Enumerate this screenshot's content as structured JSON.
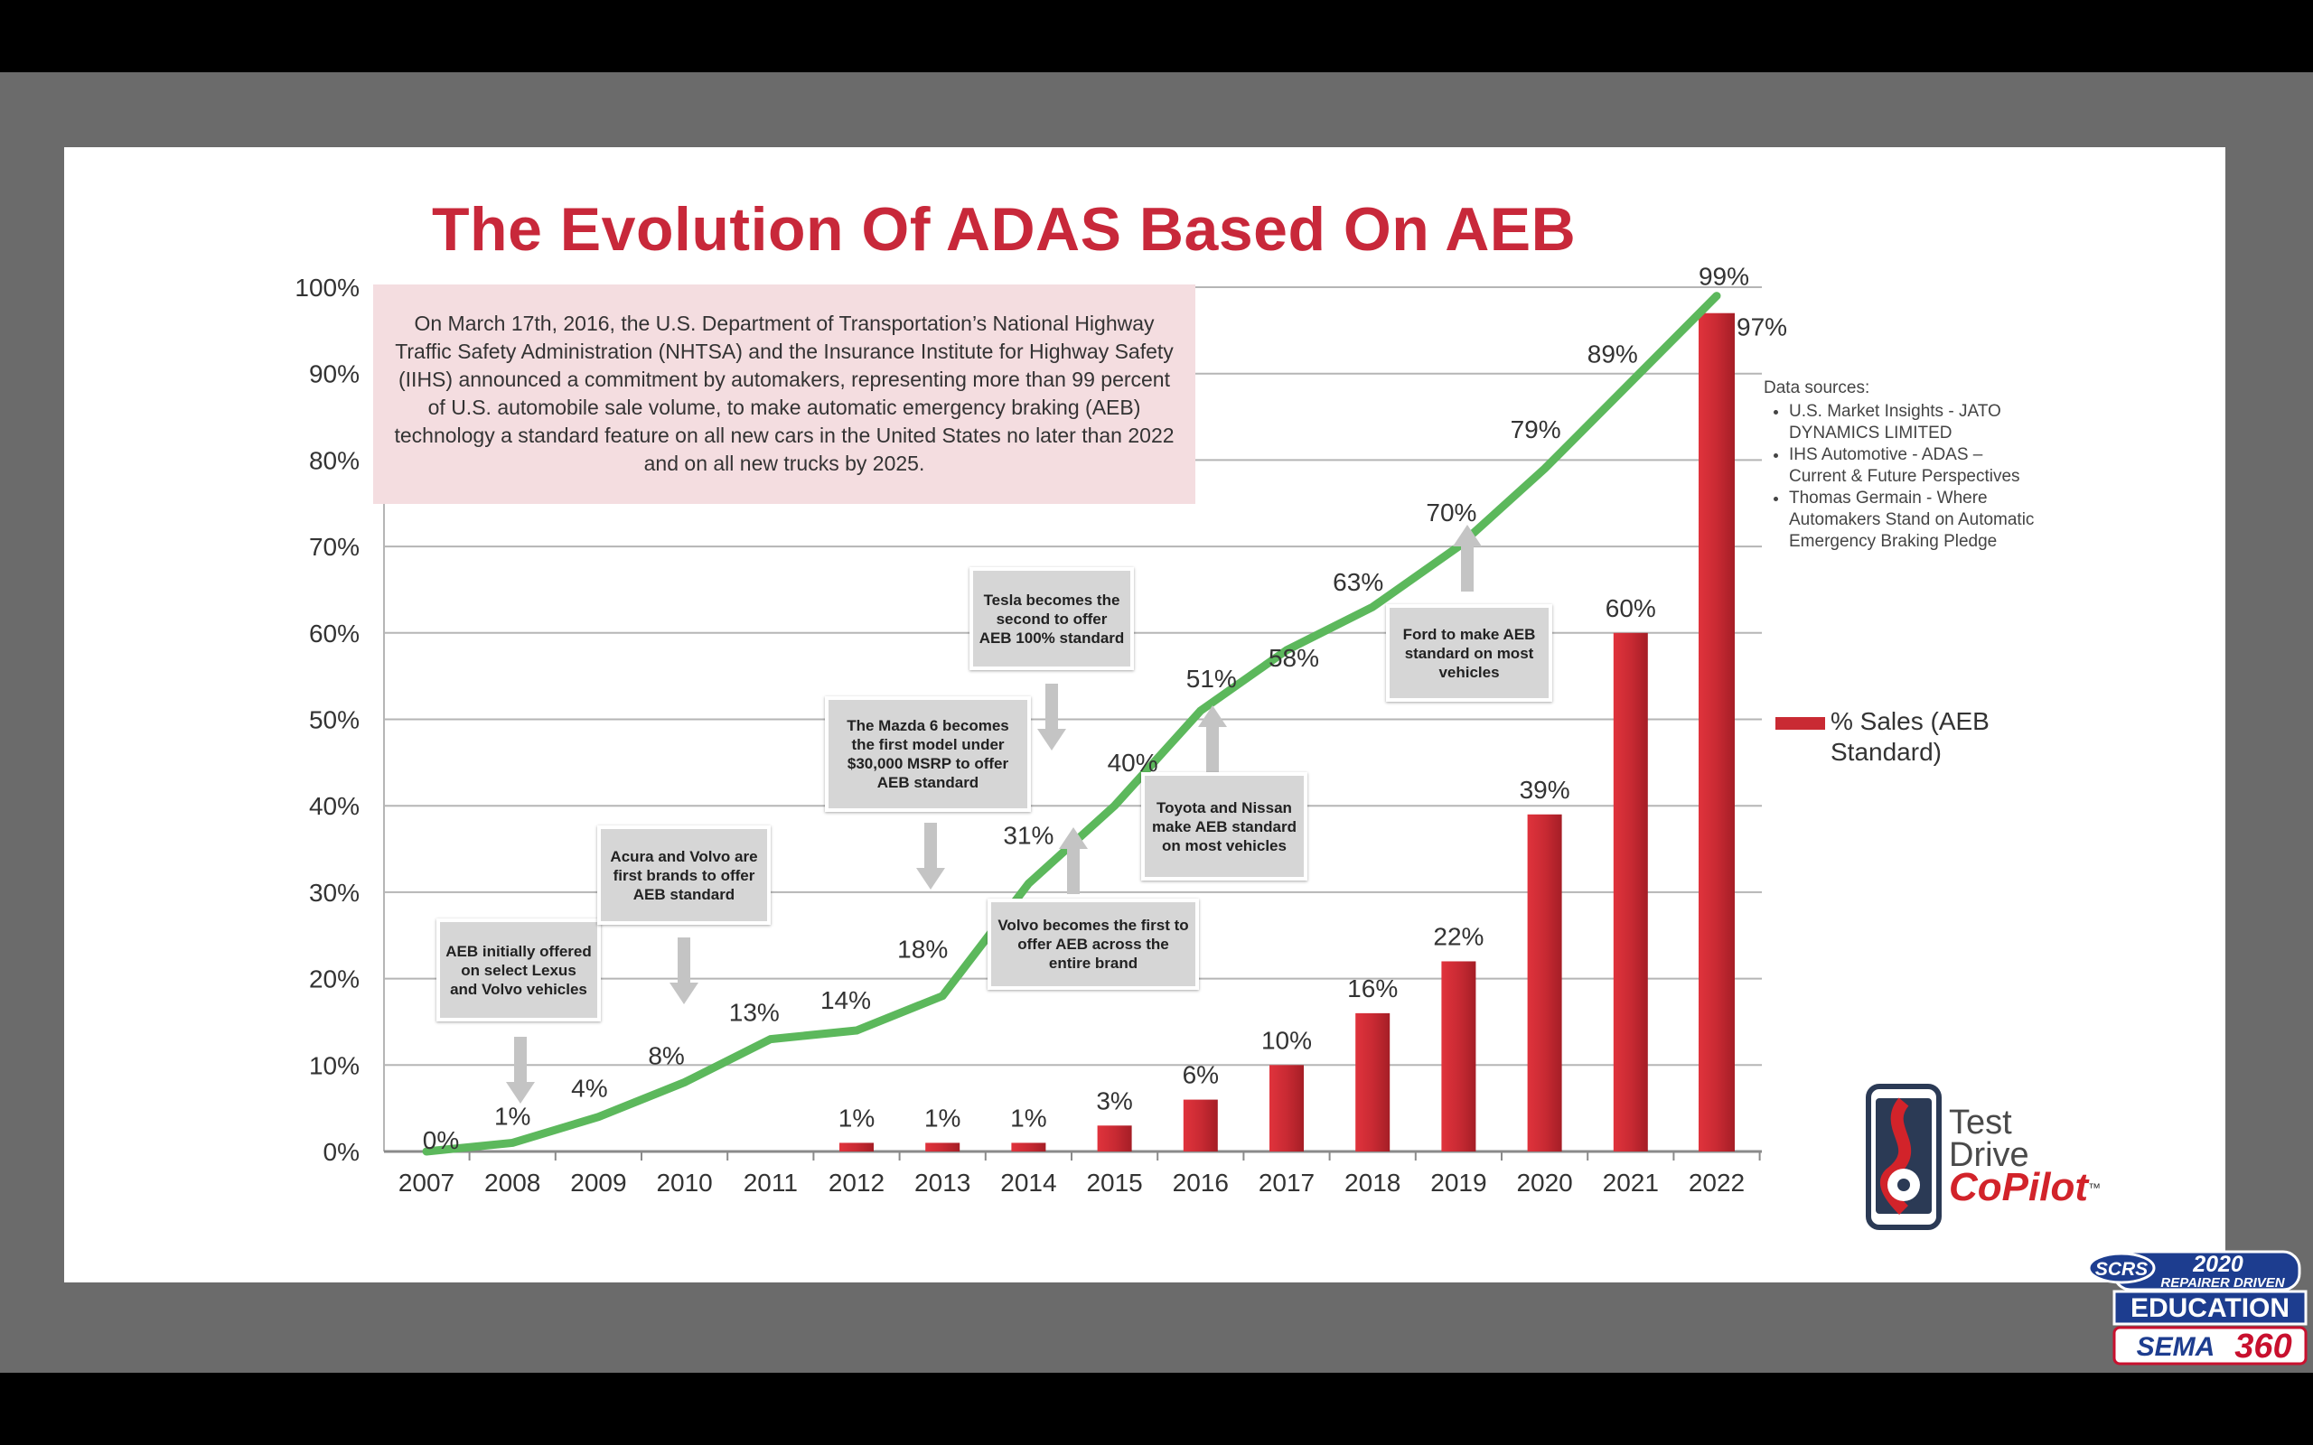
{
  "slide": {
    "title": "The Evolution Of ADAS Based On AEB",
    "info_text": "On March 17th, 2016, the U.S. Department of Transportation’s National Highway Traffic Safety Administration (NHTSA) and the Insurance Institute for Highway Safety (IIHS) announced a commitment by automakers, representing more than 99 percent of U.S. automobile sale volume, to make automatic emergency braking (AEB) technology a standard feature on all new cars in the United States no later than 2022 and on all new trucks by 2025.",
    "sources_title": "Data sources:",
    "sources": [
      "U.S. Market Insights - JATO DYNAMICS LIMITED",
      "IHS Automotive - ADAS – Current & Future Perspectives",
      "Thomas Germain - Where Automakers Stand on Automatic Emergency Braking Pledge"
    ],
    "callouts": [
      {
        "text": "AEB initially offered on select Lexus and Volvo vehicles",
        "arrow": "down"
      },
      {
        "text": "Acura and Volvo are first brands to offer AEB standard",
        "arrow": "down"
      },
      {
        "text": "The Mazda 6 becomes the first model under $30,000 MSRP to offer AEB standard",
        "arrow": "down"
      },
      {
        "text": "Tesla becomes the second to offer AEB 100% standard",
        "arrow": "down"
      },
      {
        "text": "Volvo becomes the first to offer AEB across the entire brand",
        "arrow": "up"
      },
      {
        "text": "Toyota and Nissan make AEB standard on most vehicles",
        "arrow": "up"
      },
      {
        "text": "Ford to make AEB standard on most vehicles",
        "arrow": "up"
      }
    ],
    "logo": {
      "line1": "Test",
      "line2": "Drive",
      "line3": "CoPilot",
      "tm": "™"
    },
    "badge": {
      "year": "2020",
      "line1": "REPAIRER DRIVEN",
      "line2": "EDUCATION",
      "scrs": "SCRS",
      "sema": "SEMA",
      "num": "360"
    }
  },
  "chart_data": {
    "type": "bar",
    "categories": [
      "2007",
      "2008",
      "2009",
      "2010",
      "2011",
      "2012",
      "2013",
      "2014",
      "2015",
      "2016",
      "2017",
      "2018",
      "2019",
      "2020",
      "2021",
      "2022"
    ],
    "series": [
      {
        "name": "% Sales (AEB Standard)",
        "type": "bar",
        "color": "#c92a33",
        "values": [
          null,
          null,
          null,
          null,
          null,
          1,
          1,
          1,
          3,
          6,
          10,
          16,
          22,
          39,
          60,
          97
        ],
        "labels": [
          "",
          "",
          "",
          "",
          "",
          "1%",
          "1%",
          "1%",
          "3%",
          "6%",
          "10%",
          "16%",
          "22%",
          "39%",
          "60%",
          "97%"
        ]
      },
      {
        "type": "line",
        "color": "#5cb85c",
        "values": [
          0,
          1,
          4,
          8,
          13,
          14,
          18,
          31,
          40,
          51,
          58,
          63,
          70,
          79,
          89,
          99
        ],
        "labels": [
          "0%",
          "1%",
          "4%",
          "8%",
          "13%",
          "14%",
          "18%",
          "31%",
          "40%",
          "51%",
          "58%",
          "63%",
          "70%",
          "79%",
          "89%",
          "99%"
        ]
      }
    ],
    "yticks": [
      "0%",
      "10%",
      "20%",
      "30%",
      "40%",
      "50%",
      "60%",
      "70%",
      "80%",
      "90%",
      "100%"
    ],
    "ylim": [
      0,
      100
    ],
    "grid": true,
    "legend_position": "right"
  }
}
